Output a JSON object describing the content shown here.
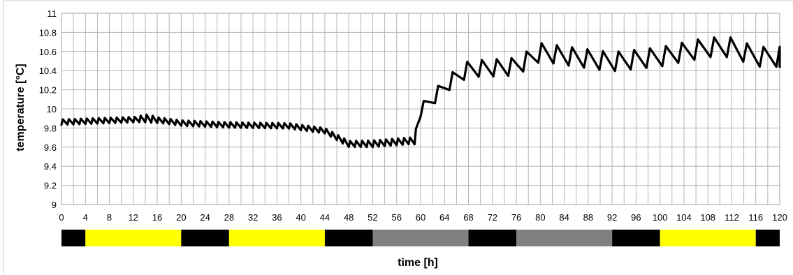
{
  "chart_data": {
    "type": "line",
    "xlabel": "time [h]",
    "ylabel": "temperature  [°C]",
    "xlim": [
      0,
      120
    ],
    "ylim": [
      9,
      11
    ],
    "grid": true,
    "legend": "none",
    "line_color": "#000000",
    "x_ticks": [
      "0",
      "4",
      "8",
      "12",
      "16",
      "20",
      "24",
      "28",
      "32",
      "36",
      "40",
      "44",
      "48",
      "52",
      "56",
      "60",
      "64",
      "68",
      "72",
      "76",
      "80",
      "84",
      "88",
      "92",
      "96",
      "100",
      "104",
      "108",
      "112",
      "116",
      "120"
    ],
    "y_ticks": [
      "9",
      "9.2",
      "9.4",
      "9.6",
      "9.8",
      "10",
      "10.2",
      "10.4",
      "10.6",
      "10.8",
      "11"
    ],
    "baseline": [
      [
        0,
        9.85
      ],
      [
        14,
        9.88
      ],
      [
        15,
        9.88
      ],
      [
        20,
        9.84
      ],
      [
        28,
        9.82
      ],
      [
        38,
        9.81
      ],
      [
        44,
        9.76
      ],
      [
        48,
        9.62
      ],
      [
        52,
        9.62
      ],
      [
        58,
        9.65
      ],
      [
        59,
        9.65
      ],
      [
        60,
        9.95
      ],
      [
        64,
        10.2
      ],
      [
        66,
        10.3
      ],
      [
        68,
        10.38
      ],
      [
        76,
        10.4
      ],
      [
        80,
        10.55
      ],
      [
        88,
        10.48
      ],
      [
        92,
        10.45
      ],
      [
        100,
        10.5
      ],
      [
        104,
        10.55
      ],
      [
        108,
        10.6
      ],
      [
        112,
        10.6
      ],
      [
        116,
        10.5
      ],
      [
        120,
        10.5
      ]
    ],
    "amplitude": [
      [
        0,
        0.04
      ],
      [
        12,
        0.04
      ],
      [
        14,
        0.06
      ],
      [
        16,
        0.04
      ],
      [
        44,
        0.04
      ],
      [
        52,
        0.05
      ],
      [
        58,
        0.05
      ],
      [
        60,
        0.1
      ],
      [
        66,
        0.12
      ],
      [
        80,
        0.14
      ],
      [
        120,
        0.15
      ]
    ],
    "period": [
      [
        0,
        1.0
      ],
      [
        59,
        1.0
      ],
      [
        60,
        2.4
      ],
      [
        120,
        2.8
      ]
    ],
    "schedule": [
      {
        "start": 0,
        "end": 4,
        "color": "#000000"
      },
      {
        "start": 4,
        "end": 20,
        "color": "#ffff00"
      },
      {
        "start": 20,
        "end": 28,
        "color": "#000000"
      },
      {
        "start": 28,
        "end": 44,
        "color": "#ffff00"
      },
      {
        "start": 44,
        "end": 52,
        "color": "#000000"
      },
      {
        "start": 52,
        "end": 68,
        "color": "#808080"
      },
      {
        "start": 68,
        "end": 76,
        "color": "#000000"
      },
      {
        "start": 76,
        "end": 92,
        "color": "#808080"
      },
      {
        "start": 92,
        "end": 100,
        "color": "#000000"
      },
      {
        "start": 100,
        "end": 116,
        "color": "#ffff00"
      },
      {
        "start": 116,
        "end": 120,
        "color": "#000000"
      }
    ]
  }
}
